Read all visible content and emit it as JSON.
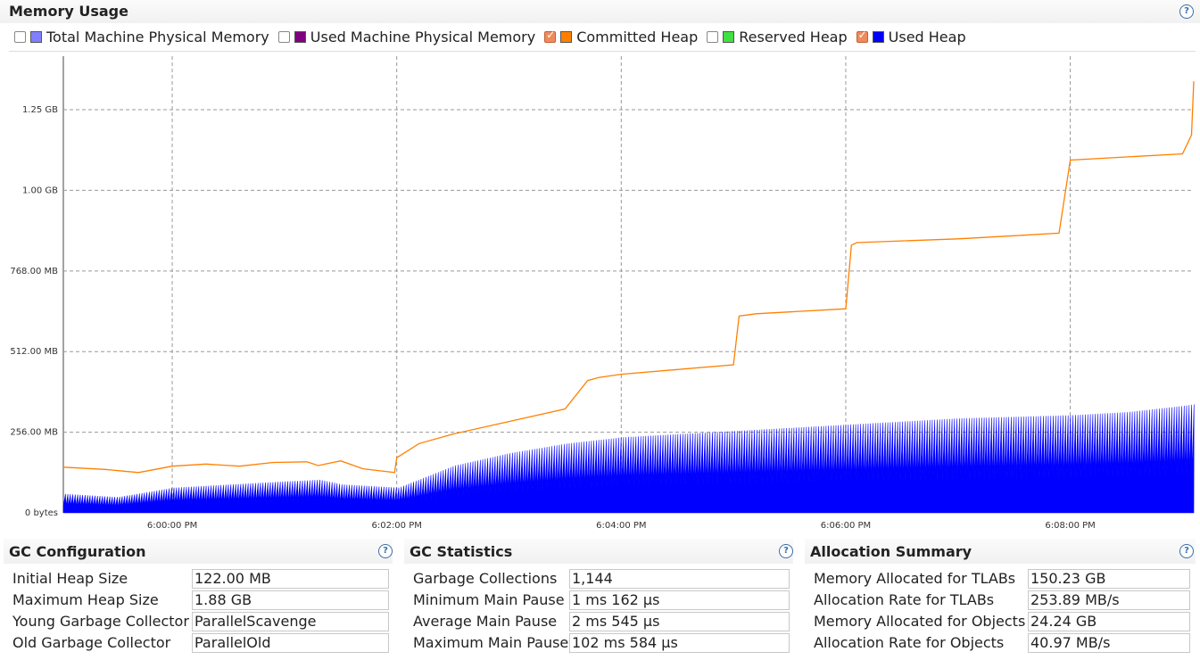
{
  "title": "Memory Usage",
  "legend": [
    {
      "label": "Total Machine Physical Memory",
      "checked": false,
      "color": "#8080ff"
    },
    {
      "label": "Used Machine Physical Memory",
      "checked": false,
      "color": "#800080"
    },
    {
      "label": "Committed Heap",
      "checked": true,
      "color": "#ff8000"
    },
    {
      "label": "Reserved Heap",
      "checked": false,
      "color": "#40e040"
    },
    {
      "label": "Used Heap",
      "checked": true,
      "color": "#0000ff"
    }
  ],
  "chart_data": {
    "type": "area",
    "y_ticks": [
      "0 bytes",
      "256.00 MB",
      "512.00 MB",
      "768.00 MB",
      "1.00 GB",
      "1.25 GB"
    ],
    "y_tick_values_mb": [
      0,
      256,
      512,
      768,
      1024,
      1280
    ],
    "ylim_mb": [
      0,
      1450
    ],
    "x_ticks": [
      "6:00:00 PM",
      "6:02:00 PM",
      "6:04:00 PM",
      "6:06:00 PM",
      "6:08:00 PM"
    ],
    "x_tick_minutes": [
      0,
      2,
      4,
      6,
      8
    ],
    "xlim_minutes": [
      -0.97,
      9.1
    ],
    "grid": true,
    "series": [
      {
        "name": "Committed Heap",
        "color": "#ff8000",
        "x": [
          -0.97,
          -0.6,
          -0.3,
          0.0,
          0.3,
          0.6,
          0.9,
          1.2,
          1.3,
          1.5,
          1.7,
          1.98,
          2.0,
          2.2,
          2.5,
          3.0,
          3.5,
          3.7,
          3.8,
          4.0,
          4.5,
          5.0,
          5.05,
          5.2,
          6.0,
          6.05,
          6.1,
          7.0,
          7.5,
          7.9,
          8.0,
          9.0,
          9.08,
          9.1
        ],
        "values": [
          145,
          138,
          128,
          148,
          155,
          148,
          160,
          162,
          150,
          165,
          140,
          128,
          175,
          220,
          250,
          290,
          330,
          420,
          430,
          440,
          455,
          470,
          625,
          632,
          648,
          850,
          858,
          870,
          880,
          888,
          1120,
          1140,
          1200,
          1370
        ]
      },
      {
        "name": "Used Heap",
        "color": "#0000ff",
        "x": [
          -0.97,
          -0.5,
          0.0,
          0.5,
          1.0,
          1.3,
          1.5,
          2.0,
          2.5,
          3.0,
          3.5,
          4.0,
          4.5,
          5.0,
          5.5,
          6.0,
          6.5,
          7.0,
          7.5,
          8.0,
          8.5,
          9.0,
          9.1
        ],
        "values": [
          60,
          50,
          80,
          90,
          100,
          105,
          90,
          80,
          150,
          190,
          220,
          240,
          250,
          260,
          270,
          280,
          290,
          300,
          305,
          310,
          320,
          340,
          345
        ]
      }
    ]
  },
  "gc_config": {
    "title": "GC Configuration",
    "rows": [
      {
        "label": "Initial Heap Size",
        "value": "122.00 MB"
      },
      {
        "label": "Maximum Heap Size",
        "value": "1.88 GB"
      },
      {
        "label": "Young Garbage Collector",
        "value": "ParallelScavenge"
      },
      {
        "label": "Old Garbage Collector",
        "value": "ParallelOld"
      }
    ]
  },
  "gc_stats": {
    "title": "GC Statistics",
    "rows": [
      {
        "label": "Garbage Collections",
        "value": "1,144"
      },
      {
        "label": "Minimum Main Pause",
        "value": "1 ms 162 μs"
      },
      {
        "label": "Average Main Pause",
        "value": "2 ms 545 μs"
      },
      {
        "label": "Maximum Main Pause",
        "value": "102 ms 584 μs"
      }
    ]
  },
  "alloc_summary": {
    "title": "Allocation Summary",
    "rows": [
      {
        "label": "Memory Allocated for TLABs",
        "value": "150.23 GB"
      },
      {
        "label": "Allocation Rate for TLABs",
        "value": "253.89 MB/s"
      },
      {
        "label": "Memory Allocated for Objects",
        "value": "24.24 GB"
      },
      {
        "label": "Allocation Rate for Objects",
        "value": "40.97 MB/s"
      }
    ]
  },
  "help_glyph": "?"
}
